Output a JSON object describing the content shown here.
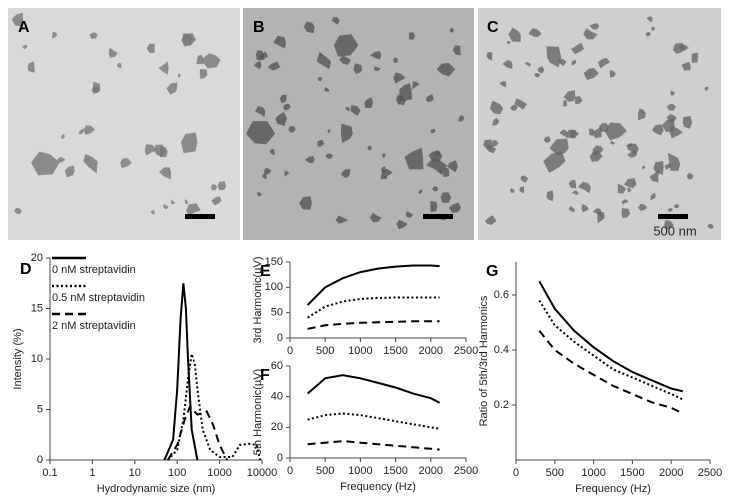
{
  "images": {
    "panels": [
      "A",
      "B",
      "C"
    ],
    "scale_bar": "500 nm"
  },
  "chart_data": [
    {
      "type": "line",
      "label": "D",
      "x_label": "Hydrodynamic size (nm)",
      "y_label": "Intensity (%)",
      "log_x": true,
      "xlim": [
        0.1,
        10000
      ],
      "xticks": [
        0.1,
        1,
        10,
        100,
        1000,
        10000
      ],
      "ylim": [
        0,
        20
      ],
      "yticks": [
        0,
        5,
        10,
        15,
        20
      ],
      "legend": "top-left",
      "series": [
        {
          "name": "0 nM streptavidin",
          "color": "#000000",
          "style": "solid",
          "x": [
            50,
            80,
            100,
            120,
            140,
            160,
            180,
            220,
            300
          ],
          "values": [
            0,
            2,
            7,
            14,
            17.5,
            15,
            10,
            3,
            0
          ]
        },
        {
          "name": "0.5 nM streptavidin",
          "color": "#000000",
          "style": "dotted",
          "x": [
            60,
            100,
            140,
            180,
            220,
            260,
            300,
            400,
            600,
            1000,
            2000,
            3000,
            5000,
            7500,
            9000
          ],
          "values": [
            0,
            1,
            4,
            8,
            10.5,
            9.5,
            7,
            3,
            1,
            0.3,
            0.3,
            1.5,
            1.6,
            1.5,
            0
          ]
        },
        {
          "name": "2 nM streptavidin",
          "color": "#000000",
          "style": "dashed",
          "x": [
            60,
            100,
            150,
            200,
            300,
            500,
            700,
            1000,
            1500
          ],
          "values": [
            0,
            1.5,
            4,
            5.3,
            4.5,
            4.8,
            3.5,
            1.5,
            0
          ]
        }
      ]
    },
    {
      "type": "line",
      "label": "E",
      "y_label": "3rd Harmonic(µV)",
      "xlim": [
        0,
        2500
      ],
      "xticks": [
        0,
        500,
        1000,
        1500,
        2000,
        2500
      ],
      "ylim": [
        0,
        150
      ],
      "yticks": [
        0,
        50,
        100,
        150
      ],
      "series": [
        {
          "color": "#000000",
          "style": "solid",
          "x": [
            250,
            500,
            750,
            1000,
            1250,
            1500,
            1750,
            2000,
            2125
          ],
          "values": [
            65,
            100,
            118,
            130,
            137,
            141,
            143,
            143,
            142
          ]
        },
        {
          "color": "#000000",
          "style": "dotted",
          "x": [
            250,
            500,
            750,
            1000,
            1250,
            1500,
            1750,
            2000,
            2125
          ],
          "values": [
            40,
            62,
            72,
            77,
            79,
            80,
            80,
            80,
            80
          ]
        },
        {
          "color": "#000000",
          "style": "dashed",
          "x": [
            250,
            500,
            750,
            1000,
            1250,
            1500,
            1750,
            2000,
            2125
          ],
          "values": [
            18,
            25,
            28,
            30,
            31,
            32,
            33,
            33,
            33
          ]
        }
      ]
    },
    {
      "type": "line",
      "label": "F",
      "x_label": "Frequency (Hz)",
      "y_label": "5th Harmonic(µV)",
      "xlim": [
        0,
        2500
      ],
      "xticks": [
        0,
        500,
        1000,
        1500,
        2000,
        2500
      ],
      "ylim": [
        0,
        60
      ],
      "yticks": [
        0,
        20,
        40,
        60
      ],
      "series": [
        {
          "color": "#000000",
          "style": "solid",
          "x": [
            250,
            500,
            750,
            1000,
            1250,
            1500,
            1750,
            2000,
            2125
          ],
          "values": [
            42,
            52,
            54,
            52,
            49,
            46,
            42,
            39,
            36
          ]
        },
        {
          "color": "#000000",
          "style": "dotted",
          "x": [
            250,
            500,
            750,
            1000,
            1250,
            1500,
            1750,
            2000,
            2125
          ],
          "values": [
            25,
            28,
            29,
            28,
            26,
            24,
            22,
            20,
            19
          ]
        },
        {
          "color": "#000000",
          "style": "dashed",
          "x": [
            250,
            500,
            750,
            1000,
            1250,
            1500,
            1750,
            2000,
            2125
          ],
          "values": [
            9,
            10,
            11,
            10,
            9,
            8,
            7,
            6,
            5.5
          ]
        }
      ]
    },
    {
      "type": "line",
      "label": "G",
      "x_label": "Frequency (Hz)",
      "y_label": "Ratio of 5th/3rd Harmonics",
      "xlim": [
        0,
        2500
      ],
      "xticks": [
        0,
        500,
        1000,
        1500,
        2000,
        2500
      ],
      "ylim": [
        0,
        0.72
      ],
      "yticks": [
        0.2,
        0.4,
        0.6
      ],
      "series": [
        {
          "color": "#000000",
          "style": "solid",
          "x": [
            300,
            500,
            750,
            1000,
            1250,
            1500,
            1750,
            2000,
            2150
          ],
          "values": [
            0.65,
            0.55,
            0.47,
            0.41,
            0.36,
            0.32,
            0.29,
            0.26,
            0.25
          ]
        },
        {
          "color": "#000000",
          "style": "dotted",
          "x": [
            300,
            500,
            750,
            1000,
            1250,
            1500,
            1750,
            2000,
            2150
          ],
          "values": [
            0.58,
            0.49,
            0.43,
            0.38,
            0.33,
            0.3,
            0.27,
            0.24,
            0.22
          ]
        },
        {
          "color": "#000000",
          "style": "dashed",
          "x": [
            300,
            500,
            750,
            1000,
            1250,
            1500,
            1750,
            2000,
            2150
          ],
          "values": [
            0.47,
            0.4,
            0.35,
            0.31,
            0.27,
            0.24,
            0.21,
            0.19,
            0.17
          ]
        }
      ]
    }
  ]
}
